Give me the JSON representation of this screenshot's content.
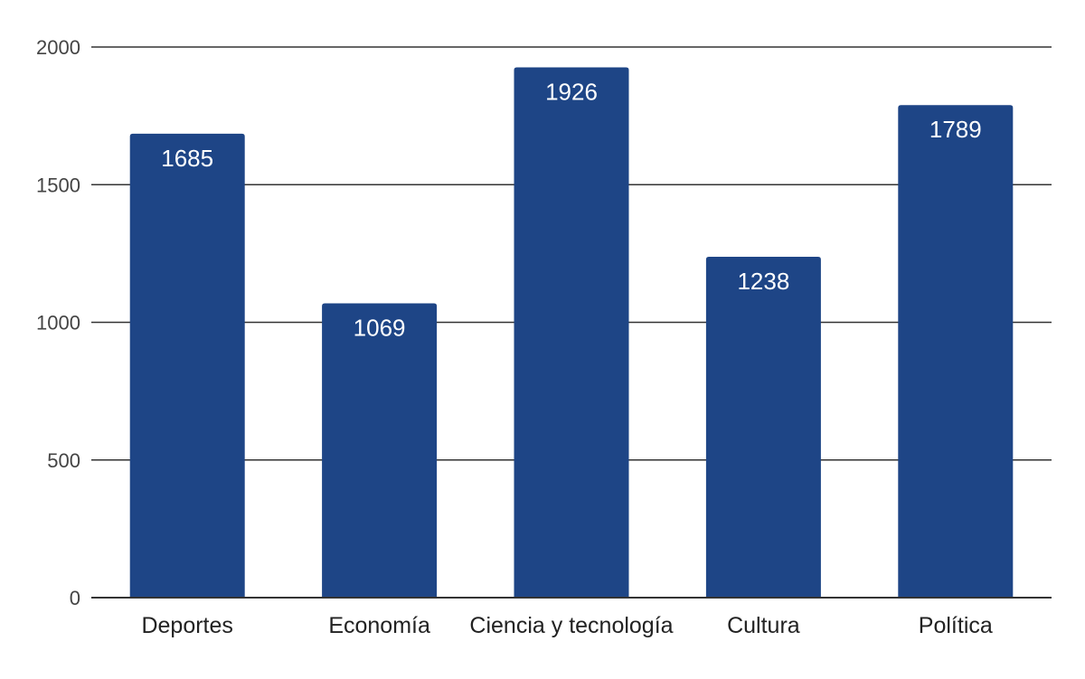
{
  "chart_data": {
    "type": "bar",
    "categories": [
      "Deportes",
      "Economía",
      "Ciencia y tecnología",
      "Cultura",
      "Política"
    ],
    "values": [
      1685,
      1069,
      1926,
      1238,
      1789
    ],
    "data_labels": [
      "1685",
      "1069",
      "1926",
      "1238",
      "1789"
    ],
    "title": "",
    "xlabel": "",
    "ylabel": "",
    "ylim": [
      0,
      2000
    ],
    "yticks": [
      0,
      500,
      1000,
      1500,
      2000
    ],
    "ytick_labels": [
      "0",
      "500",
      "1000",
      "1500",
      "2000"
    ],
    "grid": true,
    "legend": "none",
    "bar_color": "#1e4586"
  }
}
